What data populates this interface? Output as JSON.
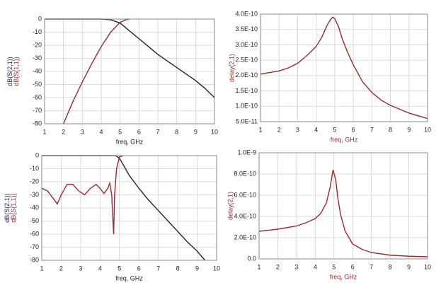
{
  "chart_data": [
    {
      "type": "line",
      "xlabel": "freq, GHz",
      "xlabel_color": "#222222",
      "xlim": [
        1,
        10
      ],
      "xticks": [
        1,
        2,
        3,
        4,
        5,
        6,
        7,
        8,
        9,
        10
      ],
      "ylim": [
        -80,
        0
      ],
      "yticks": [
        0,
        -10,
        -20,
        -30,
        -40,
        -50,
        -60,
        -70,
        -80
      ],
      "grid": true,
      "series": [
        {
          "name": "dB(S(2,1))",
          "color": "#1c2340",
          "x": [
            1,
            1.5,
            2,
            2.5,
            3,
            3.5,
            4,
            4.5,
            5,
            5.5,
            6,
            6.5,
            7,
            7.5,
            8,
            8.5,
            9,
            9.5,
            10
          ],
          "values": [
            0,
            0,
            0,
            0,
            0,
            0,
            0,
            -0.5,
            -3,
            -9,
            -15,
            -21,
            -27,
            -32,
            -37,
            -42,
            -47,
            -53,
            -60
          ]
        },
        {
          "name": "dB(S(1,1))",
          "color": "#a0282d",
          "x": [
            2,
            2.5,
            3,
            3.5,
            4,
            4.5,
            5,
            5.3,
            5.5
          ],
          "values": [
            -80,
            -63,
            -48,
            -34,
            -21,
            -10,
            -2.5,
            -0.5,
            0
          ]
        }
      ]
    },
    {
      "type": "line",
      "xlabel": "freq, GHz",
      "xlabel_color": "#a0282d",
      "xlim": [
        1,
        10
      ],
      "xticks": [
        1,
        2,
        3,
        4,
        5,
        6,
        7,
        8,
        9,
        10
      ],
      "ylim": [
        5e-11,
        4e-10
      ],
      "yticks": [
        {
          "value": 5e-11,
          "label": "5.0E-11"
        },
        {
          "value": 1e-10,
          "label": "1.0E-10"
        },
        {
          "value": 1.5e-10,
          "label": "1.5E-10"
        },
        {
          "value": 2e-10,
          "label": "2.0E-10"
        },
        {
          "value": 2.5e-10,
          "label": "2.5E-10"
        },
        {
          "value": 3e-10,
          "label": "3.0E-10"
        },
        {
          "value": 3.5e-10,
          "label": "3.5E-10"
        },
        {
          "value": 4e-10,
          "label": "4.0E-10"
        }
      ],
      "grid": true,
      "series": [
        {
          "name": "delay(2,1)",
          "color": "#a0282d",
          "x": [
            1,
            1.5,
            2,
            2.5,
            3,
            3.5,
            4,
            4.3,
            4.6,
            4.8,
            4.9,
            5,
            5.2,
            5.4,
            5.7,
            6,
            6.5,
            7,
            7.5,
            8,
            9,
            10
          ],
          "values": [
            2.05e-10,
            2.1e-10,
            2.15e-10,
            2.25e-10,
            2.4e-10,
            2.65e-10,
            2.95e-10,
            3.25e-10,
            3.65e-10,
            3.85e-10,
            3.9e-10,
            3.85e-10,
            3.6e-10,
            3.2e-10,
            2.75e-10,
            2.35e-10,
            1.8e-10,
            1.45e-10,
            1.2e-10,
            1.03e-10,
            7.8e-11,
            6e-11
          ]
        }
      ]
    },
    {
      "type": "line",
      "xlabel": "freq, GHz",
      "xlabel_color": "#222222",
      "xlim": [
        1,
        10
      ],
      "xticks": [
        1,
        2,
        3,
        4,
        5,
        6,
        7,
        8,
        9,
        10
      ],
      "ylim": [
        -80,
        0
      ],
      "yticks": [
        0,
        -10,
        -20,
        -30,
        -40,
        -50,
        -60,
        -70,
        -80
      ],
      "grid": true,
      "series": [
        {
          "name": "dB(S(2,1))",
          "color": "#1c2340",
          "x": [
            1,
            2,
            3,
            4,
            4.8,
            5,
            5.5,
            6,
            6.5,
            7,
            7.5,
            8,
            8.5,
            9,
            9.4
          ],
          "values": [
            0,
            0,
            0,
            0,
            0,
            -2,
            -15,
            -25,
            -34,
            -42,
            -50,
            -58,
            -66,
            -73,
            -80
          ]
        },
        {
          "name": "dB(S(1,1))",
          "color": "#a0282d",
          "x": [
            1,
            1.3,
            1.6,
            1.8,
            2,
            2.3,
            2.6,
            2.9,
            3.2,
            3.5,
            3.8,
            4,
            4.2,
            4.4,
            4.5,
            4.6,
            4.65,
            4.7,
            4.75,
            4.85,
            5,
            5.2
          ],
          "values": [
            -25,
            -27,
            -33,
            -37,
            -30,
            -22,
            -22,
            -27,
            -30,
            -25,
            -22,
            -25,
            -29,
            -25,
            -21,
            -30,
            -45,
            -60,
            -30,
            -10,
            -1,
            0
          ]
        }
      ]
    },
    {
      "type": "line",
      "xlabel": "freq, GHz",
      "xlabel_color": "#a0282d",
      "xlim": [
        1,
        10
      ],
      "xticks": [
        1,
        2,
        3,
        4,
        5,
        6,
        7,
        8,
        9,
        10
      ],
      "ylim": [
        0,
        1e-09
      ],
      "yticks": [
        {
          "value": 0,
          "label": "0.0"
        },
        {
          "value": 2e-10,
          "label": "2.0E-10"
        },
        {
          "value": 4e-10,
          "label": "4.0E-10"
        },
        {
          "value": 6e-10,
          "label": "6.0E-10"
        },
        {
          "value": 8e-10,
          "label": "8.0E-10"
        },
        {
          "value": 1e-09,
          "label": "1.0E-9"
        }
      ],
      "grid": true,
      "series": [
        {
          "name": "delay(2,1)",
          "color": "#a0282d",
          "x": [
            1,
            2,
            3,
            3.5,
            4,
            4.3,
            4.6,
            4.8,
            4.95,
            5.1,
            5.2,
            5.35,
            5.6,
            6,
            6.5,
            7,
            8,
            9,
            10
          ],
          "values": [
            2.6e-10,
            2.8e-10,
            3.1e-10,
            3.4e-10,
            3.8e-10,
            4.3e-10,
            5.3e-10,
            6.8e-10,
            8.4e-10,
            7.4e-10,
            5.8e-10,
            4.2e-10,
            2.6e-10,
            1.4e-10,
            9e-11,
            6e-11,
            3.5e-11,
            2.5e-11,
            2e-11
          ]
        }
      ]
    }
  ]
}
